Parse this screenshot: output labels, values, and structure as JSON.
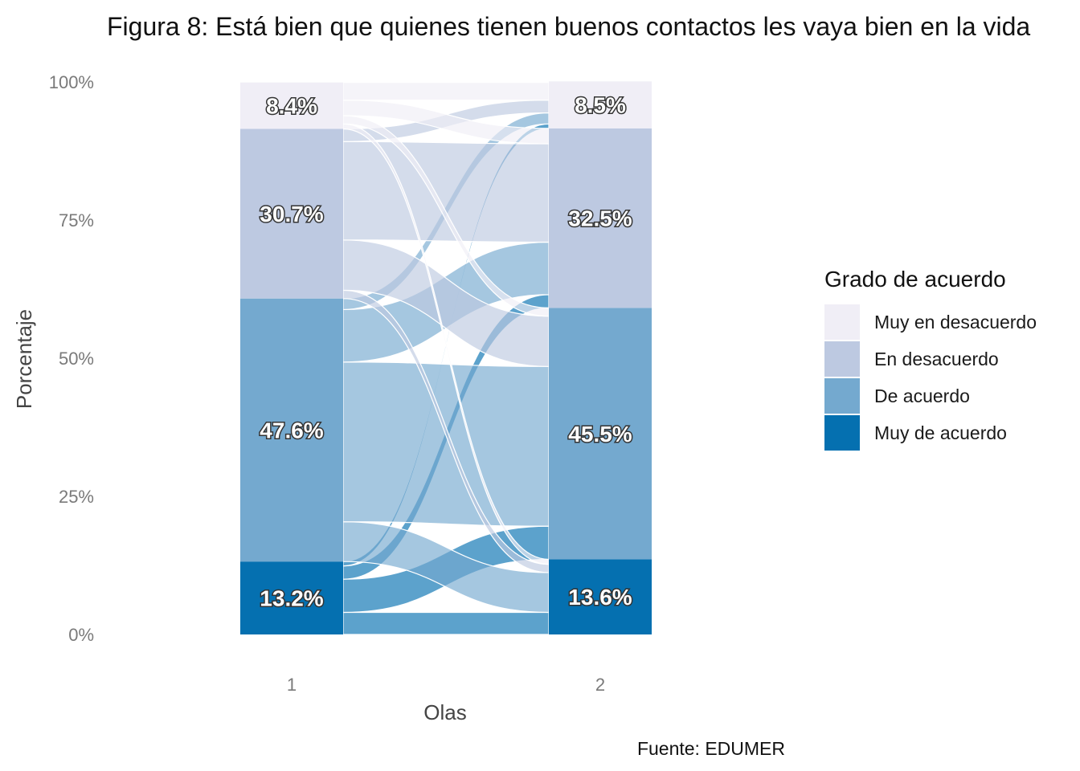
{
  "chart_data": {
    "type": "alluvial",
    "title": "Figura 8: Está bien que quienes tienen buenos contactos les vaya bien en la vida",
    "xlabel": "Olas",
    "ylabel": "Porcentaje",
    "caption": "Fuente: EDUMER",
    "ylim": [
      0,
      100
    ],
    "y_ticks": [
      "0%",
      "25%",
      "50%",
      "75%",
      "100%"
    ],
    "x_categories": [
      "1",
      "2"
    ],
    "grid": false,
    "legend": {
      "title": "Grado de acuerdo",
      "position": "right",
      "entries": [
        {
          "name": "Muy en desacuerdo",
          "color": "#f0eef6"
        },
        {
          "name": "En desacuerdo",
          "color": "#bdc9e1"
        },
        {
          "name": "De acuerdo",
          "color": "#74a9cf"
        },
        {
          "name": "Muy de acuerdo",
          "color": "#0570b0"
        }
      ]
    },
    "stack_order_bottom_to_top": [
      "Muy de acuerdo",
      "De acuerdo",
      "En desacuerdo",
      "Muy en desacuerdo"
    ],
    "waves": [
      {
        "wave": "1",
        "values": {
          "Muy de acuerdo": 13.2,
          "De acuerdo": 47.6,
          "En desacuerdo": 30.7,
          "Muy en desacuerdo": 8.4
        },
        "labels": {
          "Muy de acuerdo": "13.2%",
          "De acuerdo": "47.6%",
          "En desacuerdo": "30.7%",
          "Muy en desacuerdo": "8.4%"
        }
      },
      {
        "wave": "2",
        "values": {
          "Muy de acuerdo": 13.6,
          "De acuerdo": 45.5,
          "En desacuerdo": 32.5,
          "Muy en desacuerdo": 8.5
        },
        "labels": {
          "Muy de acuerdo": "13.6%",
          "De acuerdo": "45.5%",
          "En desacuerdo": "32.5%",
          "Muy en desacuerdo": "8.5%"
        }
      }
    ],
    "flows": [
      {
        "from": "Muy de acuerdo",
        "to": "Muy de acuerdo",
        "value": 4.0
      },
      {
        "from": "Muy de acuerdo",
        "to": "De acuerdo",
        "value": 6.0
      },
      {
        "from": "Muy de acuerdo",
        "to": "En desacuerdo",
        "value": 2.4
      },
      {
        "from": "Muy de acuerdo",
        "to": "Muy en desacuerdo",
        "value": 0.8
      },
      {
        "from": "De acuerdo",
        "to": "Muy de acuerdo",
        "value": 7.2
      },
      {
        "from": "De acuerdo",
        "to": "De acuerdo",
        "value": 28.9
      },
      {
        "from": "De acuerdo",
        "to": "En desacuerdo",
        "value": 9.5
      },
      {
        "from": "De acuerdo",
        "to": "Muy en desacuerdo",
        "value": 2.0
      },
      {
        "from": "En desacuerdo",
        "to": "Muy de acuerdo",
        "value": 1.5
      },
      {
        "from": "En desacuerdo",
        "to": "De acuerdo",
        "value": 9.1
      },
      {
        "from": "En desacuerdo",
        "to": "En desacuerdo",
        "value": 17.8
      },
      {
        "from": "En desacuerdo",
        "to": "Muy en desacuerdo",
        "value": 2.3
      },
      {
        "from": "Muy en desacuerdo",
        "to": "Muy de acuerdo",
        "value": 0.9
      },
      {
        "from": "Muy en desacuerdo",
        "to": "De acuerdo",
        "value": 1.5
      },
      {
        "from": "Muy en desacuerdo",
        "to": "En desacuerdo",
        "value": 2.8
      },
      {
        "from": "Muy en desacuerdo",
        "to": "Muy en desacuerdo",
        "value": 3.2
      }
    ]
  }
}
